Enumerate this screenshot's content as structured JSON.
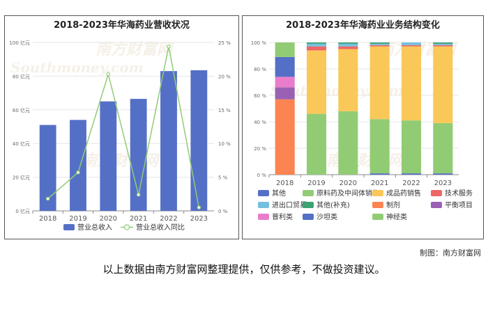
{
  "colors": {
    "bar": "#5470c6",
    "line": "#91cc75",
    "mix": {
      "其他": "#5470c6",
      "原料药及中间体销售": "#91cc75",
      "成品药销售": "#fac858",
      "技术服务": "#ee6666",
      "进出口贸易": "#73c0de",
      "其他(补充)": "#3ba272",
      "制剂": "#fc8452",
      "平衡项目": "#9a60b4",
      "普利类": "#ea7ccc",
      "沙坦类": "#5470c6",
      "神经类": "#91cc75"
    }
  },
  "watermark": {
    "cn": "南方财富网",
    "en": "Southmoney.com"
  },
  "footer": {
    "credit": "制图：南方财富网",
    "disclaimer": "以上数据由南方财富网整理提供，仅供参考，不做投资建议。"
  },
  "chart_data": [
    {
      "type": "bar",
      "title": "2018-2023年华海药业营收状况",
      "categories": [
        "2018",
        "2019",
        "2020",
        "2021",
        "2022",
        "2023"
      ],
      "series": [
        {
          "name": "营业总收入",
          "type": "bar",
          "axis": "left",
          "values": [
            51,
            54,
            65,
            66.5,
            83,
            83.5
          ]
        },
        {
          "name": "营业总收入同比",
          "type": "line",
          "axis": "right",
          "values": [
            1.8,
            5.7,
            20.3,
            2.4,
            24.4,
            0.5
          ]
        }
      ],
      "y_left": {
        "min": 0,
        "max": 100,
        "ticks": [
          "0 亿元",
          "20 亿元",
          "40 亿元",
          "60 亿元",
          "80 亿元",
          "100 亿元"
        ]
      },
      "y_right": {
        "min": 0,
        "max": 25,
        "ticks": [
          "0 %",
          "5 %",
          "10 %",
          "15 %",
          "20 %",
          "25 %"
        ]
      },
      "legend": [
        "营业总收入",
        "营业总收入同比"
      ],
      "legend_position": "bottom"
    },
    {
      "type": "bar",
      "stacked": true,
      "title": "2018-2023年华海药业业务结构变化",
      "categories": [
        "2018",
        "2019",
        "2020",
        "2021",
        "2022",
        "2023"
      ],
      "y_ticks": [
        "0 %",
        "20 %",
        "40 %",
        "60 %",
        "80 %",
        "100 %"
      ],
      "ylim": [
        0,
        100
      ],
      "series": [
        {
          "name": "其他",
          "values": [
            0,
            0,
            0,
            1,
            1,
            1
          ]
        },
        {
          "name": "原料药及中间体销售",
          "values": [
            0,
            46,
            48,
            41,
            40,
            38
          ]
        },
        {
          "name": "成品药销售",
          "values": [
            0,
            48,
            47,
            55,
            56,
            58
          ]
        },
        {
          "name": "技术服务",
          "values": [
            0,
            3,
            2,
            1,
            1,
            1
          ]
        },
        {
          "name": "进出口贸易",
          "values": [
            0,
            2,
            2,
            1,
            2,
            1
          ]
        },
        {
          "name": "其他(补充)",
          "values": [
            0,
            1,
            1,
            1,
            0,
            1
          ]
        },
        {
          "name": "制剂",
          "values": [
            57,
            0,
            0,
            0,
            0,
            0
          ]
        },
        {
          "name": "平衡项目",
          "values": [
            9,
            0,
            0,
            0,
            0,
            0
          ]
        },
        {
          "name": "普利类",
          "values": [
            8,
            0,
            0,
            0,
            0,
            0
          ]
        },
        {
          "name": "沙坦类",
          "values": [
            15,
            0,
            0,
            0,
            0,
            0
          ]
        },
        {
          "name": "神经类",
          "values": [
            11,
            0,
            0,
            0,
            0,
            0
          ]
        }
      ],
      "legend_position": "bottom"
    }
  ]
}
